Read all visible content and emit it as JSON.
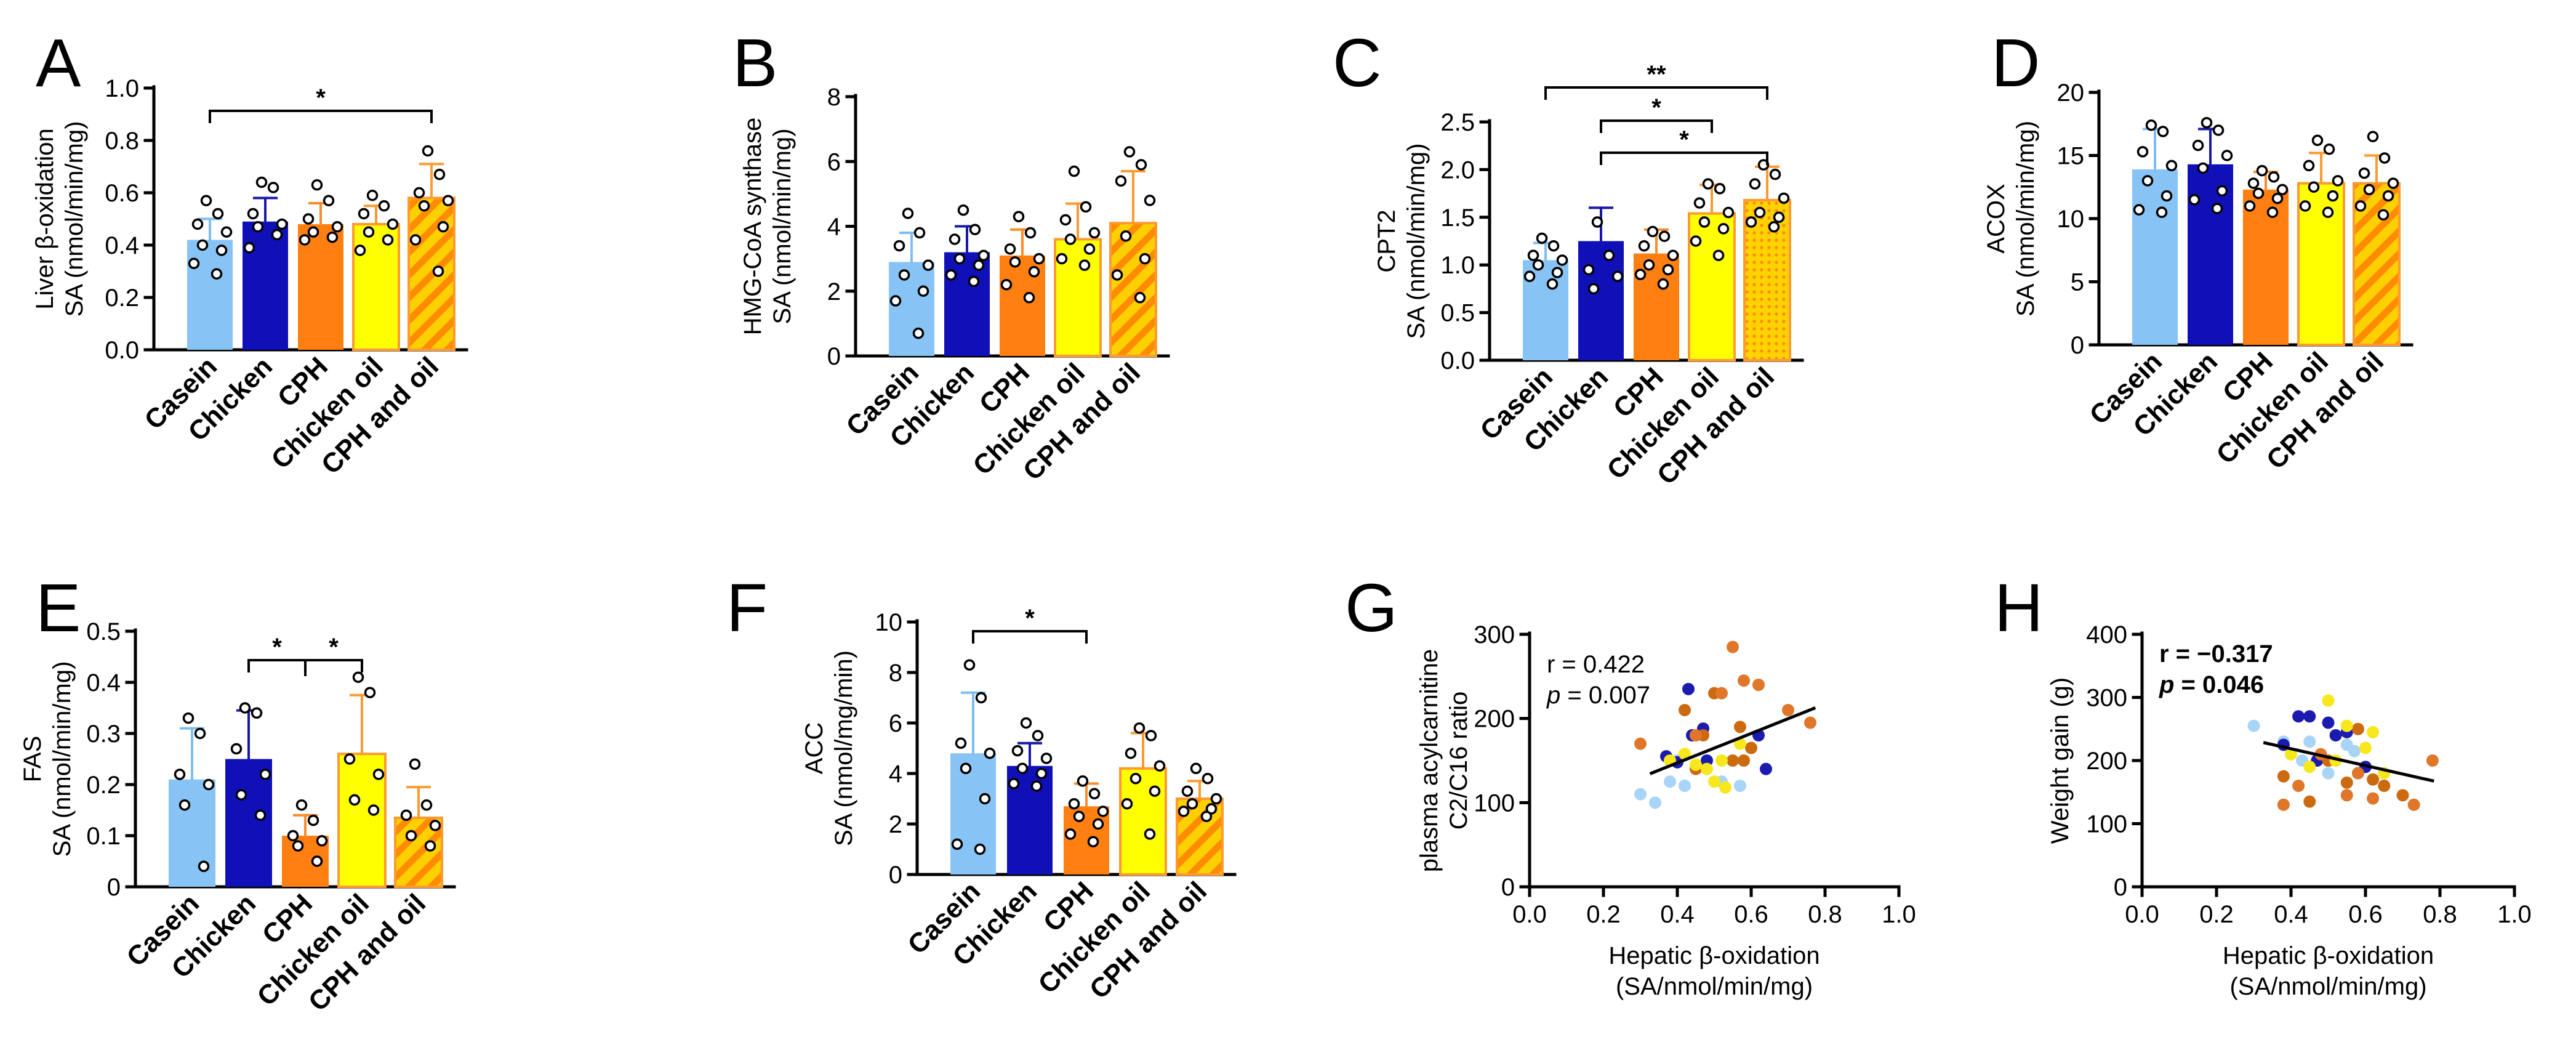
{
  "colors": {
    "Casein": "#87c4f5",
    "Chicken": "#1010b8",
    "CPH": "#ff7f11",
    "Chicken oil": "#ffff00",
    "CPH and oil": "#ffd000",
    "CPH and oil hatch": "#ff8c00",
    "Casein err": "#7fbdf0",
    "Chicken err": "#1818a8",
    "CPH err": "#ff8a2a",
    "Chicken oil err": "#ff9a30",
    "CPH and oil err": "#ff9a30",
    "Casein dot": "#a8d4f8",
    "Chicken dot": "#1b1bb0",
    "CPH dot": "#cc6a10",
    "Chicken oil dot": "#f7e81c",
    "CPH and oil dot": "#e0762a",
    "fit line": "#000000"
  },
  "chart_data": [
    {
      "panel": "A",
      "type": "bar",
      "categories": [
        "Casein",
        "Chicken",
        "CPH",
        "Chicken oil",
        "CPH and oil"
      ],
      "values": [
        0.42,
        0.49,
        0.48,
        0.48,
        0.58
      ],
      "errors": [
        0.08,
        0.09,
        0.08,
        0.07,
        0.13
      ],
      "points": [
        [
          0.57,
          0.52,
          0.48,
          0.45,
          0.4,
          0.38,
          0.33,
          0.29
        ],
        [
          0.64,
          0.62,
          0.52,
          0.48,
          0.47,
          0.44,
          0.39
        ],
        [
          0.63,
          0.57,
          0.5,
          0.47,
          0.45,
          0.43,
          0.42
        ],
        [
          0.59,
          0.55,
          0.52,
          0.48,
          0.45,
          0.42,
          0.38
        ],
        [
          0.76,
          0.67,
          0.6,
          0.57,
          0.55,
          0.47,
          0.42,
          0.3
        ]
      ],
      "ylabel": [
        "Liver β-oxidation",
        "SA (nmol/min/mg)"
      ],
      "ylim": [
        0,
        1.0
      ],
      "yticks": [
        "0.0",
        "0.2",
        "0.4",
        "0.6",
        "0.8",
        "1.0"
      ],
      "significance": [
        {
          "from": 0,
          "to": 4,
          "label": "*"
        }
      ]
    },
    {
      "panel": "B",
      "type": "bar",
      "categories": [
        "Casein",
        "Chicken",
        "CPH",
        "Chicken oil",
        "CPH and oil"
      ],
      "values": [
        2.9,
        3.2,
        3.1,
        3.6,
        4.1
      ],
      "errors": [
        0.9,
        0.8,
        0.8,
        1.1,
        1.6
      ],
      "points": [
        [
          4.4,
          3.8,
          3.4,
          2.8,
          2.5,
          2.0,
          1.7,
          0.7
        ],
        [
          4.5,
          3.9,
          3.6,
          3.1,
          3.0,
          2.8,
          2.5,
          2.3
        ],
        [
          4.3,
          3.8,
          3.3,
          3.0,
          2.9,
          2.6,
          2.2,
          1.8
        ],
        [
          5.7,
          4.6,
          4.2,
          3.8,
          3.6,
          3.3,
          3.0,
          2.8
        ],
        [
          6.3,
          5.9,
          5.4,
          4.8,
          3.7,
          3.0,
          2.5,
          1.8
        ]
      ],
      "ylabel": [
        "HMG-CoA synthase",
        "SA (nmol/min/mg)"
      ],
      "ylim": [
        0,
        8
      ],
      "yticks": [
        "0",
        "2",
        "4",
        "6",
        "8"
      ],
      "significance": []
    },
    {
      "panel": "C",
      "type": "bar",
      "categories": [
        "Casein",
        "Chicken",
        "CPH",
        "Chicken oil",
        "CPH and oil"
      ],
      "values": [
        1.05,
        1.25,
        1.12,
        1.54,
        1.68
      ],
      "errors": [
        0.18,
        0.35,
        0.25,
        0.3,
        0.35
      ],
      "points": [
        [
          1.28,
          1.2,
          1.1,
          1.05,
          1.0,
          0.92,
          0.88,
          0.8
        ],
        [
          1.45,
          1.1,
          0.95,
          0.88,
          0.75
        ],
        [
          1.35,
          1.3,
          1.2,
          1.1,
          1.0,
          0.95,
          0.9,
          0.8
        ],
        [
          1.85,
          1.8,
          1.65,
          1.55,
          1.45,
          1.38,
          1.25,
          1.1
        ],
        [
          2.05,
          1.95,
          1.85,
          1.7,
          1.55,
          1.5,
          1.45,
          1.4
        ]
      ],
      "ylabel": [
        "CPT2",
        "SA (nmol/min/mg)"
      ],
      "ylim": [
        0,
        2.5
      ],
      "yticks": [
        "0.0",
        "0.5",
        "1.0",
        "1.5",
        "2.0",
        "2.5"
      ],
      "significance": [
        {
          "from": 0,
          "to": 4,
          "label": "**"
        },
        {
          "from": 1,
          "to": 3,
          "label": "*"
        },
        {
          "from": 1,
          "to": 4,
          "label": "*"
        }
      ]
    },
    {
      "panel": "D",
      "type": "bar",
      "categories": [
        "Casein",
        "Chicken",
        "CPH",
        "Chicken oil",
        "CPH and oil"
      ],
      "values": [
        13.9,
        14.3,
        12.3,
        12.8,
        12.8
      ],
      "errors": [
        3.2,
        2.8,
        1.4,
        2.4,
        2.2
      ],
      "points": [
        [
          17.4,
          16.9,
          15.3,
          14.2,
          13.0,
          11.8,
          10.7,
          10.5
        ],
        [
          17.6,
          17.0,
          15.8,
          15.0,
          14.0,
          12.2,
          11.5,
          10.8
        ],
        [
          13.8,
          13.3,
          12.8,
          12.3,
          12.0,
          11.6,
          11.0,
          10.5
        ],
        [
          16.2,
          15.5,
          14.2,
          13.0,
          12.5,
          11.8,
          11.0,
          10.5
        ],
        [
          16.5,
          14.8,
          13.6,
          12.8,
          12.3,
          11.8,
          11.0,
          10.3
        ]
      ],
      "ylabel": [
        "ACOX",
        "SA (nmol/min/mg)"
      ],
      "ylim": [
        0,
        20
      ],
      "yticks": [
        "0",
        "5",
        "10",
        "15",
        "20"
      ],
      "significance": []
    },
    {
      "panel": "E",
      "type": "bar",
      "categories": [
        "Casein",
        "Chicken",
        "CPH",
        "Chicken oil",
        "CPH and oil"
      ],
      "values": [
        0.21,
        0.25,
        0.1,
        0.26,
        0.135
      ],
      "errors": [
        0.1,
        0.095,
        0.04,
        0.115,
        0.06
      ],
      "points": [
        [
          0.33,
          0.3,
          0.22,
          0.2,
          0.16,
          0.04
        ],
        [
          0.35,
          0.34,
          0.27,
          0.22,
          0.18,
          0.14
        ],
        [
          0.16,
          0.13,
          0.1,
          0.09,
          0.08,
          0.05
        ],
        [
          0.41,
          0.38,
          0.25,
          0.22,
          0.17,
          0.15
        ],
        [
          0.24,
          0.16,
          0.14,
          0.12,
          0.1,
          0.08
        ]
      ],
      "ylabel": [
        "FAS",
        "SA (nmol/min/mg)"
      ],
      "ylim": [
        0,
        0.5
      ],
      "yticks": [
        "0",
        "0.1",
        "0.2",
        "0.3",
        "0.4",
        "0.5"
      ],
      "significance": [
        {
          "from": 1,
          "to": 2,
          "label": "*"
        },
        {
          "from": 2,
          "to": 3,
          "label": "*"
        }
      ]
    },
    {
      "panel": "F",
      "type": "bar",
      "categories": [
        "Casein",
        "Chicken",
        "CPH",
        "Chicken oil",
        "CPH and oil"
      ],
      "values": [
        4.8,
        4.3,
        2.7,
        4.2,
        3.0
      ],
      "errors": [
        2.4,
        0.9,
        0.9,
        1.4,
        0.7
      ],
      "points": [
        [
          8.3,
          7.0,
          5.2,
          4.8,
          4.2,
          3.0,
          1.2,
          1.0
        ],
        [
          6.0,
          5.5,
          4.9,
          4.6,
          4.2,
          4.0,
          3.6,
          3.5
        ],
        [
          3.7,
          3.2,
          2.8,
          2.5,
          2.3,
          2.0,
          1.6,
          1.3
        ],
        [
          5.8,
          5.5,
          4.8,
          4.3,
          3.8,
          3.3,
          2.8,
          1.6
        ],
        [
          4.2,
          3.8,
          3.3,
          3.0,
          2.8,
          2.6,
          2.5,
          2.3
        ]
      ],
      "ylabel": [
        "ACC",
        "SA (nmol/mg/min)"
      ],
      "ylim": [
        0,
        10
      ],
      "yticks": [
        "0",
        "2",
        "4",
        "6",
        "8",
        "10"
      ],
      "significance": [
        {
          "from": 0,
          "to": 2,
          "label": "*"
        }
      ]
    },
    {
      "panel": "G",
      "type": "scatter",
      "ylabel": [
        "plasma acylcarnitine",
        "C2/C16 ratio"
      ],
      "xlabel": [
        "Hepatic β-oxidation",
        "(SA/nmol/min/mg)"
      ],
      "xlim": [
        0,
        1.0
      ],
      "ylim": [
        0,
        300
      ],
      "xticks": [
        "0.0",
        "0.2",
        "0.4",
        "0.6",
        "0.8",
        "1.0"
      ],
      "yticks": [
        "0",
        "100",
        "200",
        "300"
      ],
      "stats": {
        "r_text": "r = 0.422",
        "p_label": "p",
        "p_value": " = 0.007"
      },
      "fit": {
        "x": [
          0.33,
          0.77
        ],
        "y": [
          135,
          212
        ]
      },
      "series": [
        {
          "name": "Casein",
          "x": [
            0.3,
            0.34,
            0.38,
            0.4,
            0.42,
            0.45,
            0.52,
            0.57
          ],
          "y": [
            110,
            100,
            125,
            150,
            120,
            140,
            125,
            120
          ]
        },
        {
          "name": "Chicken",
          "x": [
            0.37,
            0.4,
            0.43,
            0.44,
            0.47,
            0.48,
            0.62,
            0.64
          ],
          "y": [
            155,
            148,
            235,
            180,
            188,
            150,
            180,
            140
          ]
        },
        {
          "name": "CPH",
          "x": [
            0.42,
            0.45,
            0.47,
            0.5,
            0.55,
            0.57,
            0.58,
            0.6
          ],
          "y": [
            210,
            140,
            180,
            230,
            150,
            190,
            150,
            165
          ]
        },
        {
          "name": "Chicken oil",
          "x": [
            0.38,
            0.42,
            0.45,
            0.48,
            0.5,
            0.52,
            0.53,
            0.57
          ],
          "y": [
            150,
            158,
            145,
            140,
            125,
            150,
            118,
            170
          ]
        },
        {
          "name": "CPH and oil",
          "x": [
            0.3,
            0.45,
            0.52,
            0.55,
            0.58,
            0.62,
            0.7,
            0.76
          ],
          "y": [
            170,
            180,
            230,
            285,
            245,
            240,
            210,
            195
          ]
        }
      ]
    },
    {
      "panel": "H",
      "type": "scatter",
      "ylabel": [
        "Weight gain (g)"
      ],
      "xlabel": [
        "Hepatic β-oxidation",
        "(SA/nmol/min/mg)"
      ],
      "xlim": [
        0,
        1.0
      ],
      "ylim": [
        0,
        400
      ],
      "xticks": [
        "0.0",
        "0.2",
        "0.4",
        "0.6",
        "0.8",
        "1.0"
      ],
      "yticks": [
        "0",
        "100",
        "200",
        "300",
        "400"
      ],
      "stats": {
        "r_text": "r = −0.317",
        "p_label": "p",
        "p_value": " = 0.046"
      },
      "fit": {
        "x": [
          0.33,
          0.78
        ],
        "y": [
          228,
          168
        ]
      },
      "series": [
        {
          "name": "Casein",
          "x": [
            0.3,
            0.38,
            0.4,
            0.43,
            0.45,
            0.5,
            0.55,
            0.57
          ],
          "y": [
            255,
            230,
            210,
            200,
            230,
            180,
            225,
            215
          ]
        },
        {
          "name": "Chicken",
          "x": [
            0.38,
            0.42,
            0.45,
            0.47,
            0.5,
            0.52,
            0.55,
            0.6
          ],
          "y": [
            225,
            270,
            270,
            200,
            260,
            240,
            245,
            190
          ]
        },
        {
          "name": "CPH",
          "x": [
            0.38,
            0.45,
            0.5,
            0.55,
            0.58,
            0.62,
            0.65,
            0.7
          ],
          "y": [
            175,
            135,
            200,
            165,
            250,
            170,
            160,
            145
          ]
        },
        {
          "name": "Chicken oil",
          "x": [
            0.4,
            0.45,
            0.5,
            0.52,
            0.55,
            0.6,
            0.62,
            0.65
          ],
          "y": [
            210,
            190,
            295,
            200,
            255,
            220,
            245,
            180
          ]
        },
        {
          "name": "CPH and oil",
          "x": [
            0.38,
            0.42,
            0.48,
            0.55,
            0.58,
            0.62,
            0.73,
            0.78
          ],
          "y": [
            130,
            160,
            210,
            145,
            180,
            140,
            130,
            200
          ]
        }
      ]
    }
  ]
}
